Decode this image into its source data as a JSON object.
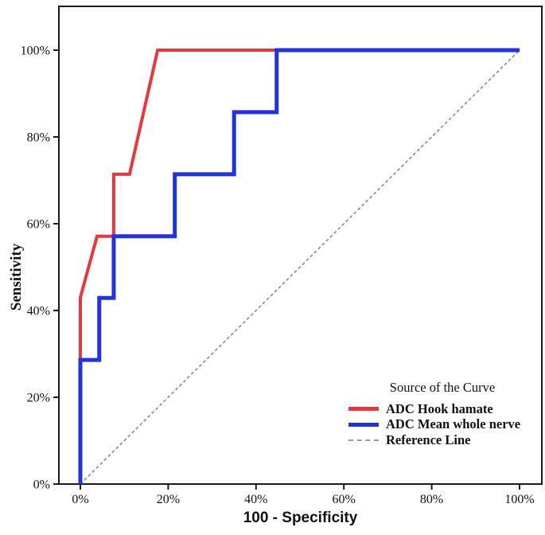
{
  "chart_data": {
    "type": "line",
    "subtype": "roc-step-curves",
    "title": "",
    "x_axis": {
      "label": "100 - Specificity",
      "range": [
        0,
        100
      ],
      "ticks": [
        {
          "value": 0,
          "label": "0%"
        },
        {
          "value": 20,
          "label": "20%"
        },
        {
          "value": 40,
          "label": "40%"
        },
        {
          "value": 60,
          "label": "60%"
        },
        {
          "value": 80,
          "label": "80%"
        },
        {
          "value": 100,
          "label": "100%"
        }
      ]
    },
    "y_axis": {
      "label": "Sensitivity",
      "range": [
        0,
        100
      ],
      "ticks": [
        {
          "value": 0,
          "label": "0%"
        },
        {
          "value": 20,
          "label": "20%"
        },
        {
          "value": 40,
          "label": "40%"
        },
        {
          "value": 60,
          "label": "60%"
        },
        {
          "value": 80,
          "label": "80%"
        },
        {
          "value": 100,
          "label": "100%"
        }
      ]
    },
    "grid": false,
    "series": [
      {
        "name": "ADC Hook hamate",
        "color": "#e8383c",
        "line_width": 4,
        "points": [
          [
            0,
            0
          ],
          [
            0,
            43
          ],
          [
            3.8,
            57.1
          ],
          [
            7.6,
            57.1
          ],
          [
            7.6,
            71.4
          ],
          [
            11.2,
            71.4
          ],
          [
            17.6,
            100
          ],
          [
            100,
            100
          ]
        ]
      },
      {
        "name": "ADC Mean whole nerve",
        "color": "#2333db",
        "line_width": 5,
        "points": [
          [
            0,
            0
          ],
          [
            0,
            28.6
          ],
          [
            4.3,
            28.6
          ],
          [
            4.3,
            42.9
          ],
          [
            7.6,
            42.9
          ],
          [
            7.6,
            57.1
          ],
          [
            21.5,
            57.1
          ],
          [
            21.5,
            71.4
          ],
          [
            35,
            71.4
          ],
          [
            35,
            85.7
          ],
          [
            44.7,
            85.7
          ],
          [
            44.7,
            100
          ],
          [
            100,
            100
          ]
        ]
      }
    ],
    "reference_line": {
      "name": "Reference Line",
      "color": "#8a8a8a",
      "dashed": true,
      "points": [
        [
          0,
          0
        ],
        [
          100,
          100
        ]
      ]
    },
    "legend": {
      "position": "inside-bottom-right",
      "title": "Source of the Curve",
      "items": [
        {
          "label": "ADC Hook hamate",
          "color": "#e8383c",
          "style": "solid"
        },
        {
          "label": "ADC Mean whole nerve",
          "color": "#2333db",
          "style": "solid"
        },
        {
          "label": "Reference Line",
          "color": "#9a9a9a",
          "style": "dashed"
        }
      ]
    },
    "colors": {
      "frame": "#1a1a1a",
      "background": "#ffffff",
      "tick_text": "#111111"
    }
  }
}
